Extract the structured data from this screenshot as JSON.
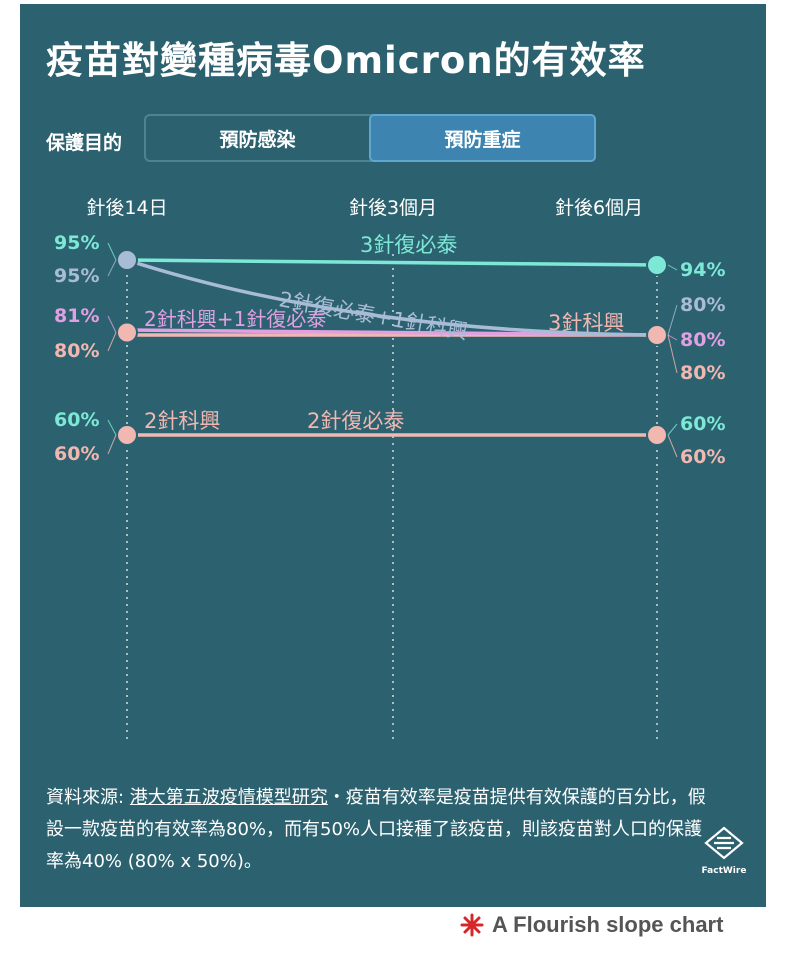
{
  "title": "疫苗對變種病毒Omicron的有效率",
  "filter": {
    "label": "保護目的",
    "options": [
      "預防感染",
      "預防重症"
    ],
    "selected": "預防重症"
  },
  "colors": {
    "background": "#2c6270",
    "mint": "#7de8d6",
    "lavender": "#a9bcd6",
    "pink": "#f1b7b1",
    "magenta": "#e0a0e2",
    "active_button": "#3d84b0"
  },
  "chart_data": {
    "type": "line",
    "subtype": "slope",
    "x": [
      "針後14日",
      "針後3個月",
      "針後6個月"
    ],
    "ylim": [
      55,
      100
    ],
    "grid": false,
    "series": [
      {
        "name": "3針復必泰",
        "values": [
          95,
          94.5,
          94
        ],
        "color": "#7de8d6"
      },
      {
        "name": "2針復必泰+1針科興",
        "values": [
          95,
          84,
          80
        ],
        "color": "#a9bcd6"
      },
      {
        "name": "3針科興",
        "values": [
          80,
          80,
          80
        ],
        "color": "#f1b7b1"
      },
      {
        "name": "2針科興+1針復必泰",
        "values": [
          81,
          80.5,
          80
        ],
        "color": "#e0a0e2"
      },
      {
        "name": "2針科興",
        "values": [
          60,
          60,
          60
        ],
        "color": "#f1b7b1"
      },
      {
        "name": "2針復必泰",
        "values": [
          60,
          60,
          60
        ],
        "color": "#f1b7b1"
      }
    ],
    "left_labels": [
      {
        "text": "95%",
        "color": "#7de8d6"
      },
      {
        "text": "95%",
        "color": "#a9bcd6"
      },
      {
        "text": "81%",
        "color": "#e0a0e2"
      },
      {
        "text": "80%",
        "color": "#f1b7b1"
      },
      {
        "text": "60%",
        "color": "#7de8d6"
      },
      {
        "text": "60%",
        "color": "#f1b7b1"
      }
    ],
    "right_labels": [
      {
        "text": "94%",
        "color": "#7de8d6"
      },
      {
        "text": "80%",
        "color": "#a9bcd6"
      },
      {
        "text": "80%",
        "color": "#e0a0e2"
      },
      {
        "text": "80%",
        "color": "#f1b7b1"
      },
      {
        "text": "60%",
        "color": "#7de8d6"
      },
      {
        "text": "60%",
        "color": "#f1b7b1"
      }
    ]
  },
  "source": {
    "prefix": "資料來源: ",
    "link": "港大第五波疫情模型研究",
    "text": "・疫苗有效率是疫苗提供有效保護的百分比，假設一款疫苗的有效率為80%，而有50%人口接種了該疫苗，則該疫苗對人口的保護率為40% (80% x 50%)。"
  },
  "logo": {
    "text": "FactWire",
    "icon": "factwire-logo-icon"
  },
  "credit": {
    "text": "A Flourish slope chart",
    "icon": "flourish-logo-icon"
  }
}
